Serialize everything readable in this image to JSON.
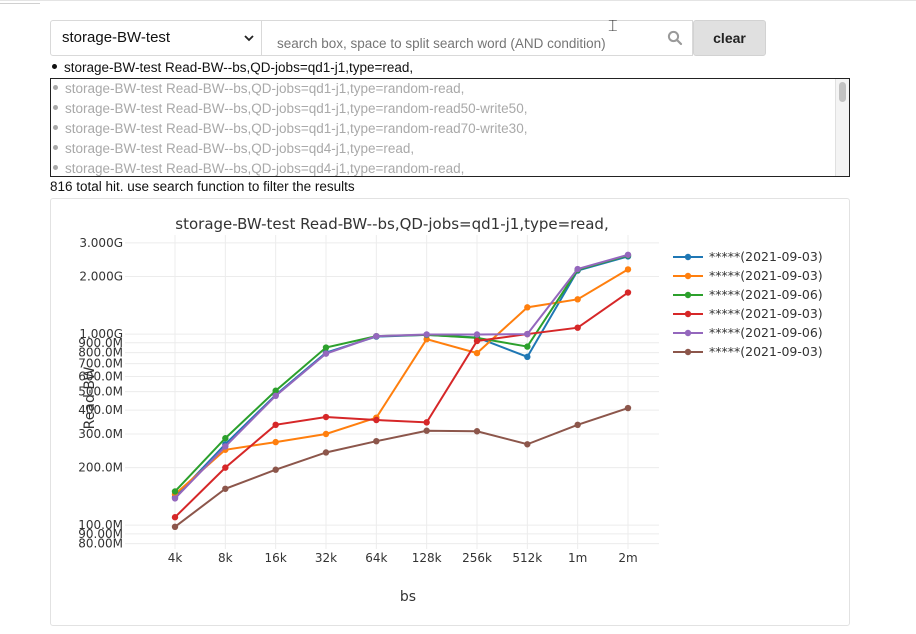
{
  "select": {
    "value": "storage-BW-test"
  },
  "search": {
    "placeholder": "search box, space to split search word (AND condition)",
    "value": ""
  },
  "buttons": {
    "clear": "clear"
  },
  "selected_item": "storage-BW-test Read-BW--bs,QD-jobs=qd1-j1,type=read,",
  "list_items": [
    "storage-BW-test Read-BW--bs,QD-jobs=qd1-j1,type=random-read,",
    "storage-BW-test Read-BW--bs,QD-jobs=qd1-j1,type=random-read50-write50,",
    "storage-BW-test Read-BW--bs,QD-jobs=qd1-j1,type=random-read70-write30,",
    "storage-BW-test Read-BW--bs,QD-jobs=qd4-j1,type=read,",
    "storage-BW-test Read-BW--bs,QD-jobs=qd4-j1,type=random-read,"
  ],
  "hit_count": "816 total hit. use search function to filter the results",
  "chart_data": {
    "type": "line",
    "title": "storage-BW-test Read-BW--bs,QD-jobs=qd1-j1,type=read,",
    "xlabel": "bs",
    "ylabel": "Read-BW",
    "yscale": "log",
    "ylim": [
      75000000,
      3300000000
    ],
    "grid": true,
    "legend_position": "right",
    "categories": [
      "4k",
      "8k",
      "16k",
      "32k",
      "64k",
      "128k",
      "256k",
      "512k",
      "1m",
      "2m"
    ],
    "y_ticks": [
      {
        "value": 80000000,
        "label": "80.00M"
      },
      {
        "value": 90000000,
        "label": "90.00M"
      },
      {
        "value": 100000000,
        "label": "100.0M"
      },
      {
        "value": 200000000,
        "label": "200.0M"
      },
      {
        "value": 300000000,
        "label": "300.0M"
      },
      {
        "value": 400000000,
        "label": "400.0M"
      },
      {
        "value": 500000000,
        "label": "500.0M"
      },
      {
        "value": 600000000,
        "label": "600.0M"
      },
      {
        "value": 700000000,
        "label": "700.0M"
      },
      {
        "value": 800000000,
        "label": "800.0M"
      },
      {
        "value": 900000000,
        "label": "900.0M"
      },
      {
        "value": 1000000000,
        "label": "1.000G"
      },
      {
        "value": 2000000000,
        "label": "2.000G"
      },
      {
        "value": 3000000000,
        "label": "3.000G"
      }
    ],
    "series": [
      {
        "name": "*****(2021-09-03)",
        "color": "#1f77b4",
        "values": [
          140000000,
          265000000,
          480000000,
          800000000,
          970000000,
          990000000,
          960000000,
          760000000,
          2150000000,
          2550000000
        ]
      },
      {
        "name": "*****(2021-09-03)",
        "color": "#ff7f0e",
        "values": [
          145000000,
          248000000,
          272000000,
          300000000,
          365000000,
          940000000,
          795000000,
          1380000000,
          1520000000,
          2180000000
        ]
      },
      {
        "name": "*****(2021-09-06)",
        "color": "#2ca02c",
        "values": [
          150000000,
          285000000,
          505000000,
          850000000,
          975000000,
          990000000,
          955000000,
          860000000,
          2170000000,
          2580000000
        ]
      },
      {
        "name": "*****(2021-09-03)",
        "color": "#d62728",
        "values": [
          110000000,
          200000000,
          335000000,
          368000000,
          355000000,
          345000000,
          920000000,
          1000000000,
          1080000000,
          1650000000
        ]
      },
      {
        "name": "*****(2021-09-06)",
        "color": "#9467bd",
        "values": [
          138000000,
          258000000,
          475000000,
          790000000,
          975000000,
          995000000,
          995000000,
          1000000000,
          2190000000,
          2600000000
        ]
      },
      {
        "name": "*****(2021-09-03)",
        "color": "#8c564b",
        "values": [
          98000000,
          155000000,
          195000000,
          240000000,
          275000000,
          312000000,
          310000000,
          265000000,
          335000000,
          410000000
        ]
      }
    ]
  }
}
